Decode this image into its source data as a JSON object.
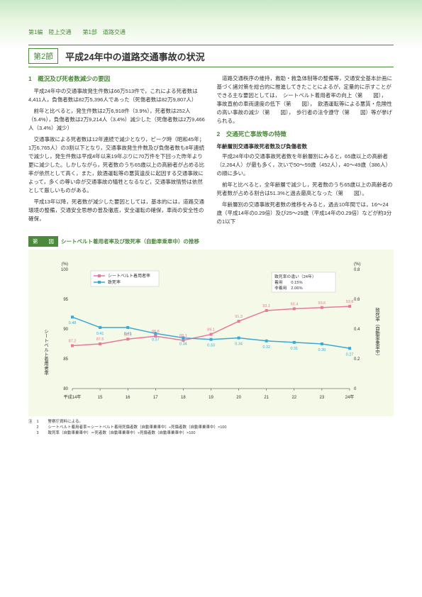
{
  "header": {
    "breadcrumb": "第1編　陸上交通　　第1部　道路交通"
  },
  "section": {
    "num": "第2節",
    "title": "平成24年中の道路交通事故の状況"
  },
  "left": {
    "sub1_title": "1　概況及び死者数減少の要因",
    "p1": "平成24年中の交通事故発生件数は66万513件で，これによる死者数は4,411人，負傷者数は82万5,396人であった（死傷者数は82万9,807人）",
    "p2": "前年と比べると，発生件数は2万6,918件（3.9%），死者数は252人（5.4%），負傷者数は2万9,214人（3.4%）減少した（死傷者数は2万9,466人（3.4%）減少）",
    "p3": "交通事故による死者数は12年連続で減少となり，ピーク時（昭和45年；1万6,765人）の3割以下となり，交通事故発生件数及び負傷者数も8年連続で減少し，発生件数は平成4年以来19年ぶりに70万件を下回った昨年より更に減少した。しかしながら，死者数のうち65歳以上の高齢者が占める比率が依然として高く，また，飲酒運転等の悪質違反に起因する交通事故によって，多くの尊い命が交通事故の犠牲となるなど，交通事故情勢は依然として厳しいものがある。",
    "p4": "平成13年以降，死者数が減少した要因としては，基本的には，道路交通環境の整備，交通安全思想の普及徹底，安全運転の確保，車両の安全性の確保，"
  },
  "right": {
    "p1": "道路交通秩序の維持，救助・救急体制等の整備等，交通安全基本計画に基づく諸対策を総合的に推進してきたことによるが，定量的に示すことができる主な要因としては，　シートベルト着用者率の向上（第　　図），　事故直前の車両速度の低下（第　　図），　飲酒運転等による悪質・危険性の高い事故の減少（第　　図），　歩行者の法令遵守（第　　図）等が挙げられる。",
    "sub2_title": "2　交通死亡事故等の特徴",
    "sub2_sub": "年齢層別交通事故死者数及び負傷者数",
    "p2": "平成24年中の交通事故死者数を年齢層別にみると，65歳以上の高齢者（2,264人）が最も多く，次いで50～59歳（452人），40～49歳（386人）の順に多い。",
    "p3": "前年と比べると，全年齢層で減少し，死者数のうち65歳以上の高齢者の死者数が占める割合は51.3%と過去最高となった（第　　図）。",
    "p4": "年齢層別の交通事故死者数の推移をみると，過去10年間では，16～24歳（平成14年の0.29倍）及び25～29歳（平成14年の0.29倍）などが約3分の1以下"
  },
  "chart": {
    "title_label": "第　　図",
    "title": "シートベルト着用者率及び致死率（自動車乗車中）の推移",
    "y_left_unit": "(%)",
    "y_right_unit": "(%)",
    "y_left_title": "シートベルト着用者率",
    "y_right_title": "致死率（自動車乗車中）",
    "legend1": "シートベルト着用者率",
    "legend2": "致死率",
    "info_title": "致死率の違い（24年）",
    "info_line1": "着用　　0.15%",
    "info_line2": "非着用　2.06%",
    "x_labels": [
      "平成14年",
      "15",
      "16",
      "17",
      "18",
      "19",
      "20",
      "21",
      "22",
      "23",
      "24年"
    ],
    "y_left_ticks": [
      80,
      85,
      90,
      95,
      100
    ],
    "y_right_ticks": [
      0,
      0.2,
      0.4,
      0.6,
      0.8
    ],
    "series1": {
      "color": "#e67a9a",
      "values": [
        87.2,
        87.5,
        88.3,
        88.8,
        88.1,
        89.1,
        91.3,
        93.1,
        93.4,
        93.6,
        93.8
      ],
      "labels": [
        "87.2",
        "87.5",
        "88.3",
        "88.8",
        "88.1",
        "89.1",
        "91.3",
        "93.1",
        "93.4",
        "93.6",
        "93.8"
      ]
    },
    "series2": {
      "color": "#3aa9d4",
      "values": [
        0.48,
        0.41,
        0.41,
        0.37,
        0.34,
        0.33,
        0.34,
        0.32,
        0.31,
        0.3,
        0.27
      ],
      "labels": [
        "0.48",
        "0.41",
        "0.41",
        "0.37",
        "0.34",
        "0.33",
        "0.34",
        "0.32",
        "0.31",
        "0.30",
        "0.27"
      ]
    },
    "background": "#f5f9e8"
  },
  "notes": {
    "prefix": "注",
    "n1": "警察庁資料による。",
    "n2": "シートベルト着用者率＝シートベルト着用死傷者数（自動車乗車中）÷死傷者数（自動車乗車中）×100",
    "n3": "致死率（自動車乗車中）＝死者数（自動車乗車中）÷死傷者数（自動車乗車中）×100"
  }
}
